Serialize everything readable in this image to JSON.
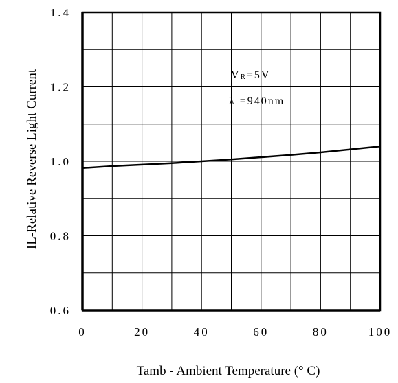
{
  "chart_data": {
    "type": "line",
    "xlabel": "Tamb - Ambient Temperature (° C)",
    "ylabel": "IL-Relative Reverse Light Current",
    "xlim": [
      0,
      100
    ],
    "ylim": [
      0.6,
      1.4
    ],
    "x_ticks": [
      0,
      20,
      40,
      60,
      80,
      100
    ],
    "y_ticks": [
      0.6,
      0.8,
      1.0,
      1.2,
      1.4
    ],
    "x_tick_labels": [
      "0",
      "20",
      "40",
      "60",
      "80",
      "100"
    ],
    "y_tick_labels": [
      "0.6",
      "0.8",
      "1.0",
      "1.2",
      "1.4"
    ],
    "grid": true,
    "annotation": {
      "line1": "VR=5V",
      "line2": "λ =940nm"
    },
    "series": [
      {
        "x": [
          0,
          10,
          20,
          30,
          40,
          50,
          60,
          70,
          80,
          90,
          100
        ],
        "y": [
          0.982,
          0.987,
          0.991,
          0.995,
          1.0,
          1.005,
          1.011,
          1.017,
          1.024,
          1.032,
          1.04
        ]
      }
    ]
  }
}
